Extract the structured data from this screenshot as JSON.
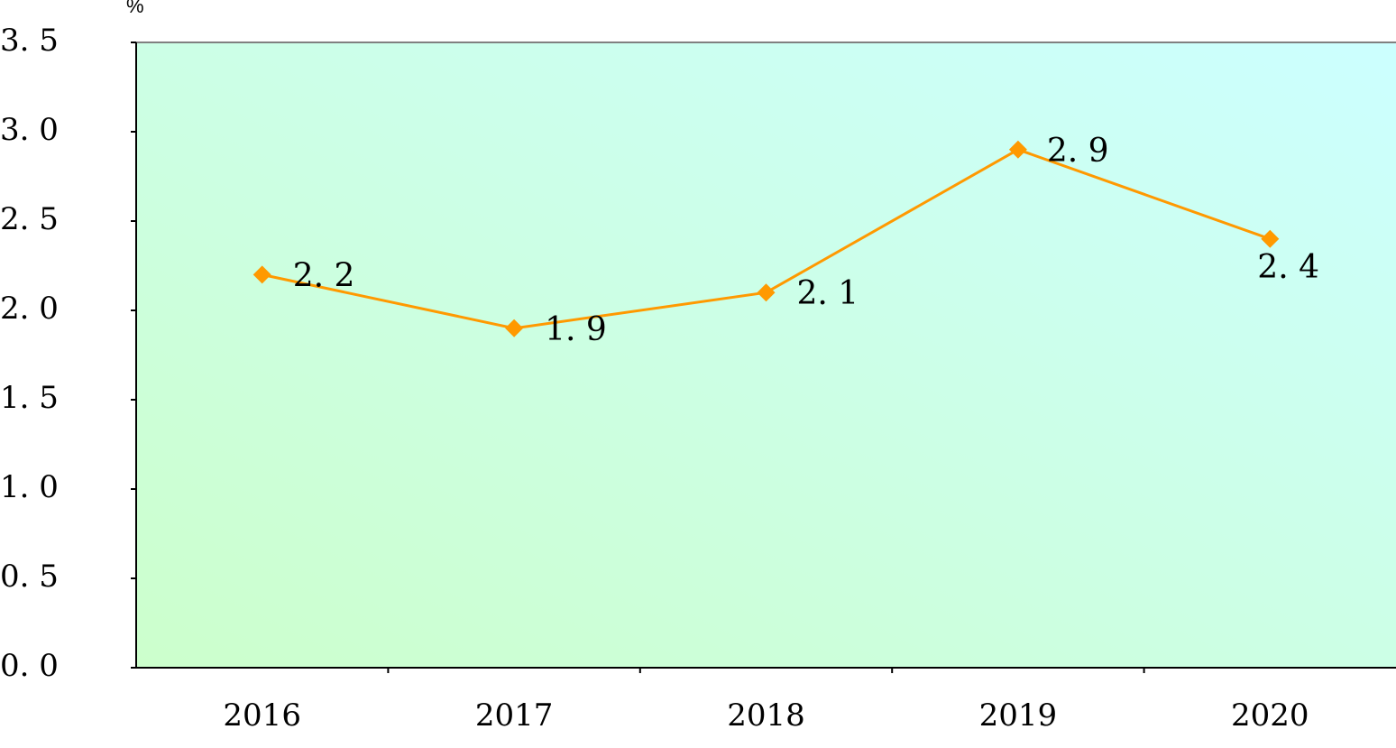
{
  "chart_data": {
    "type": "line",
    "y_label": "%",
    "categories": [
      "2016",
      "2017",
      "2018",
      "2019",
      "2020"
    ],
    "series": [
      {
        "color": "#ff9900",
        "values": [
          2.2,
          1.9,
          2.1,
          2.9,
          2.4
        ],
        "value_labels": [
          "2. 2",
          "1. 9",
          "2. 1",
          "2. 9",
          "2. 4"
        ]
      }
    ],
    "ylim": [
      0,
      3.5
    ],
    "yticks": [
      {
        "value": 0,
        "label": "0. 0"
      },
      {
        "value": 0.5,
        "label": "0. 5"
      },
      {
        "value": 1,
        "label": "1. 0"
      },
      {
        "value": 1.5,
        "label": "1. 5"
      },
      {
        "value": 2,
        "label": "2. 0"
      },
      {
        "value": 2.5,
        "label": "2. 5"
      },
      {
        "value": 3,
        "label": "3. 0"
      },
      {
        "value": 3.5,
        "label": "3. 5"
      }
    ]
  }
}
